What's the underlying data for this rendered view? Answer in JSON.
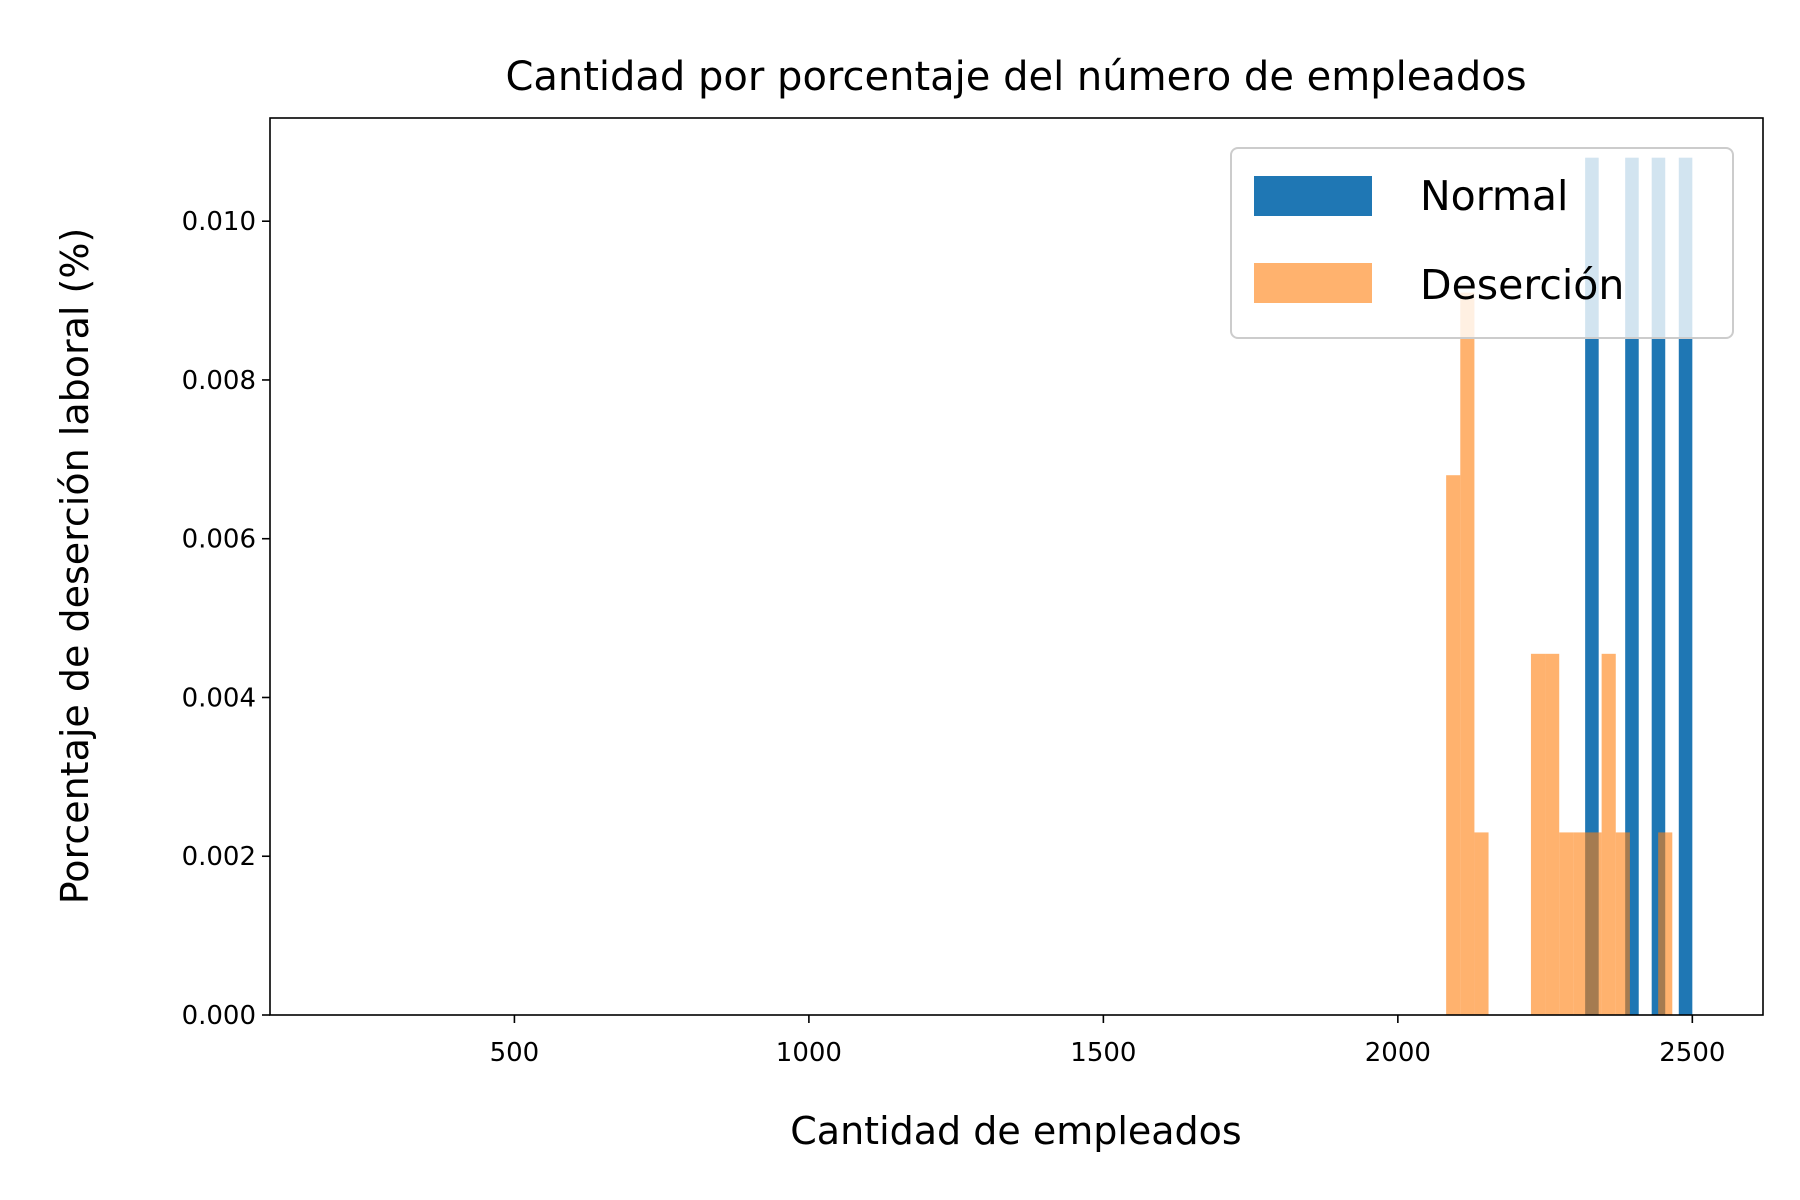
{
  "chart_data": {
    "type": "bar",
    "title": "Cantidad por porcentaje del número de empleados",
    "xlabel": "Cantidad de empleados",
    "ylabel": "Porcentaje de deserción laboral (%)",
    "xlim": [
      85,
      2620
    ],
    "ylim": [
      0,
      0.0113
    ],
    "xticks": [
      500,
      1000,
      1500,
      2000,
      2500
    ],
    "yticks": [
      0.0,
      0.002,
      0.004,
      0.006,
      0.008,
      0.01
    ],
    "grid": false,
    "legend_position": "top-right",
    "series": [
      {
        "name": "Normal",
        "color": "#1f77b4",
        "opacity": 1.0,
        "bins": [
          {
            "x0": 2318,
            "x1": 2341,
            "value": 0.0108
          },
          {
            "x0": 2341,
            "x1": 2363,
            "value": 0
          },
          {
            "x0": 2363,
            "x1": 2386,
            "value": 0
          },
          {
            "x0": 2386,
            "x1": 2409,
            "value": 0.0108
          },
          {
            "x0": 2409,
            "x1": 2431,
            "value": 0
          },
          {
            "x0": 2431,
            "x1": 2454,
            "value": 0.0108
          },
          {
            "x0": 2454,
            "x1": 2477,
            "value": 0
          },
          {
            "x0": 2477,
            "x1": 2500,
            "value": 0.0108
          }
        ]
      },
      {
        "name": "Deserción",
        "color": "#ff7f0e",
        "opacity": 0.6,
        "bins": [
          {
            "x0": 2082,
            "x1": 2106,
            "value": 0.0068
          },
          {
            "x0": 2106,
            "x1": 2130,
            "value": 0.0091
          },
          {
            "x0": 2130,
            "x1": 2154,
            "value": 0.0023
          },
          {
            "x0": 2154,
            "x1": 2178,
            "value": 0
          },
          {
            "x0": 2178,
            "x1": 2202,
            "value": 0
          },
          {
            "x0": 2202,
            "x1": 2226,
            "value": 0
          },
          {
            "x0": 2226,
            "x1": 2250,
            "value": 0.00455
          },
          {
            "x0": 2250,
            "x1": 2274,
            "value": 0.00455
          },
          {
            "x0": 2274,
            "x1": 2298,
            "value": 0.0023
          },
          {
            "x0": 2298,
            "x1": 2322,
            "value": 0.0023
          },
          {
            "x0": 2322,
            "x1": 2346,
            "value": 0.0023
          },
          {
            "x0": 2346,
            "x1": 2370,
            "value": 0.00455
          },
          {
            "x0": 2370,
            "x1": 2394,
            "value": 0.0023
          },
          {
            "x0": 2394,
            "x1": 2418,
            "value": 0
          },
          {
            "x0": 2418,
            "x1": 2442,
            "value": 0
          },
          {
            "x0": 2442,
            "x1": 2466,
            "value": 0.0023
          }
        ]
      }
    ]
  }
}
